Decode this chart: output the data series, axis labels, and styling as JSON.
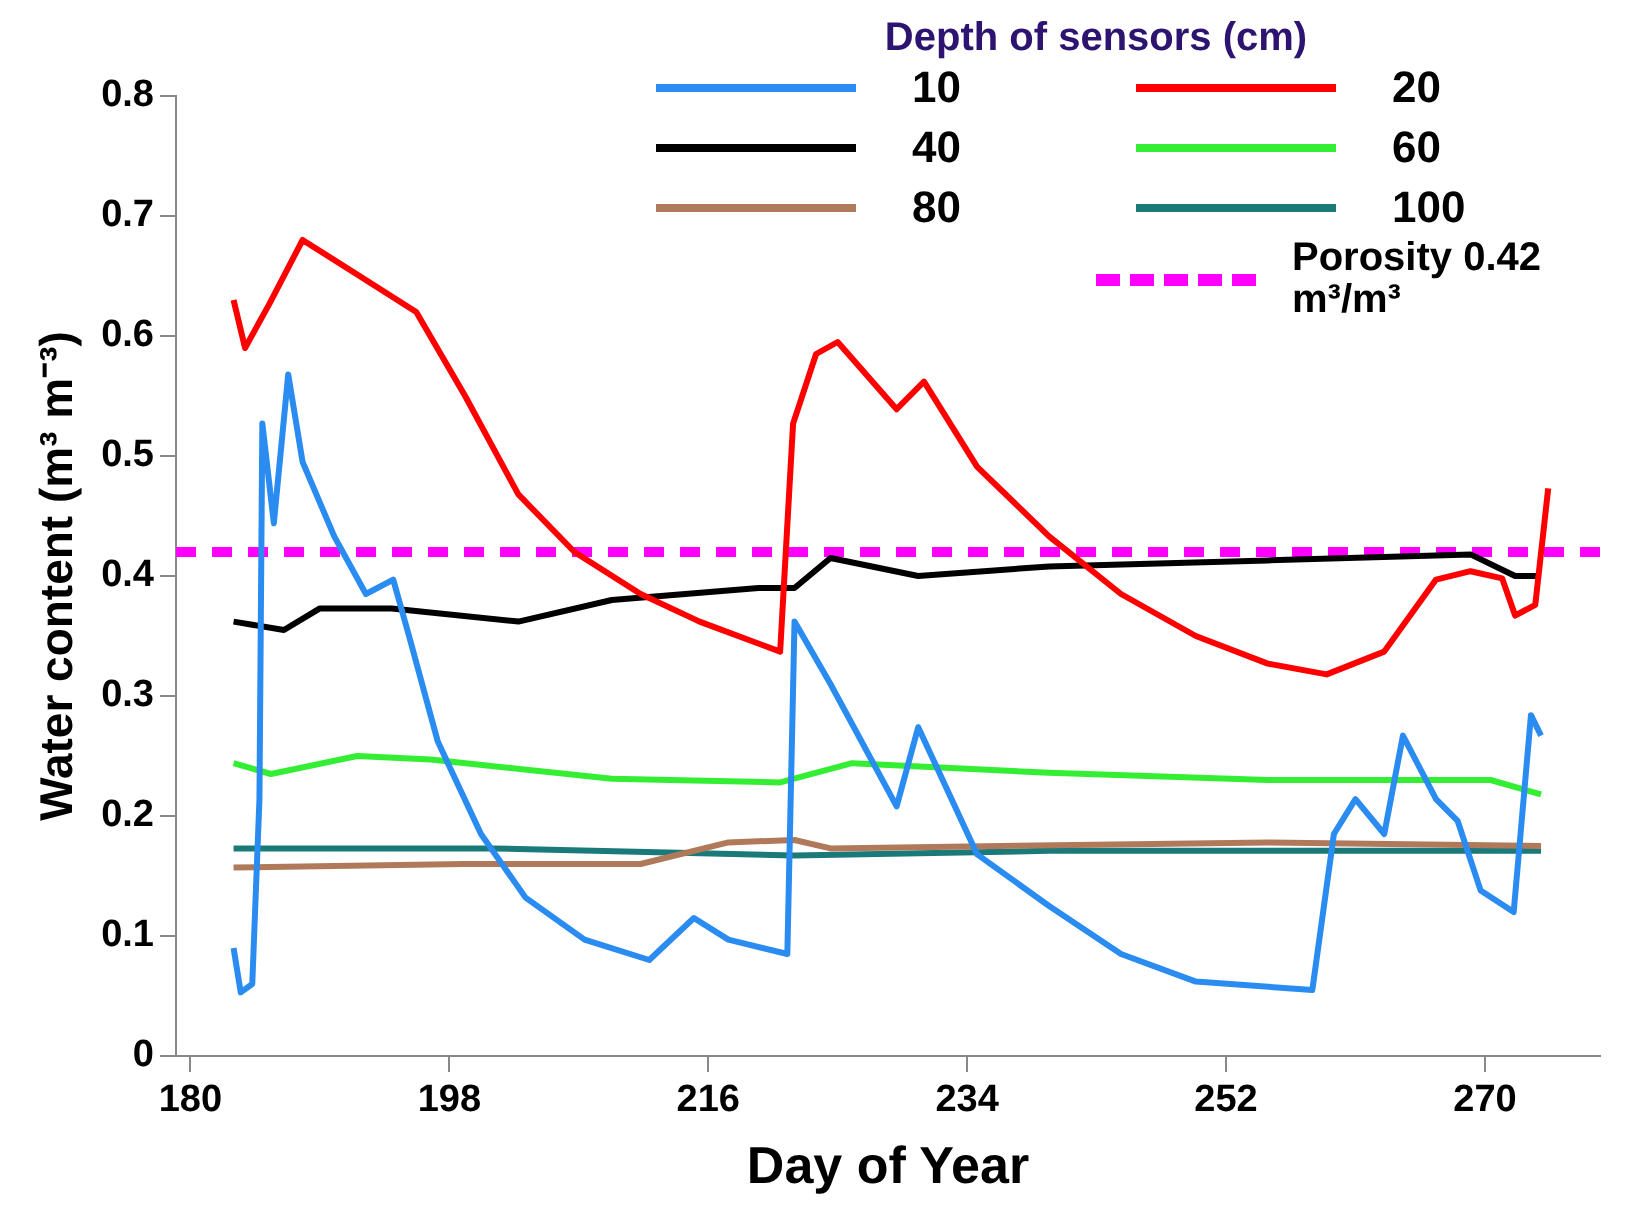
{
  "chart_data": {
    "type": "line",
    "xlabel": "Day of Year",
    "ylabel": "Water content (m³ m⁻³)",
    "legend_title": "Depth of sensors (cm)",
    "xlim": [
      179,
      278
    ],
    "xticks": [
      180,
      198,
      216,
      234,
      252,
      270
    ],
    "ylim": [
      0,
      0.8
    ],
    "yticks": [
      0,
      0.1,
      0.2,
      0.3,
      0.4,
      0.5,
      0.6,
      0.7,
      0.8
    ],
    "grid": false,
    "legend": "top right",
    "marker": "none",
    "line_style": "solid",
    "ref_lines": [
      {
        "axis": "y",
        "value": 0.42,
        "label": "Porosity 0.42 m³/m³",
        "color": "#ff00ff",
        "line_style": "dashed"
      }
    ],
    "series": [
      {
        "name": "10",
        "color": "#2a8cf0",
        "x": [
          183,
          183.5,
          184.3,
          184.8,
          185,
          185.8,
          186.8,
          187.8,
          190,
          192.2,
          194.1,
          195.2,
          197.2,
          200.2,
          203.3,
          207.4,
          211.9,
          215,
          217.4,
          221.5,
          222,
          224.5,
          229.1,
          230.6,
          234.7,
          239.7,
          244.7,
          249.9,
          258,
          259.5,
          261,
          263,
          264.3,
          266.6,
          268.1,
          269.7,
          272,
          273.2,
          273.9
        ],
        "values": [
          0.09,
          0.053,
          0.06,
          0.214,
          0.527,
          0.444,
          0.568,
          0.495,
          0.433,
          0.385,
          0.397,
          0.35,
          0.262,
          0.185,
          0.132,
          0.097,
          0.08,
          0.115,
          0.097,
          0.085,
          0.362,
          0.31,
          0.208,
          0.274,
          0.168,
          0.125,
          0.085,
          0.062,
          0.055,
          0.185,
          0.214,
          0.185,
          0.267,
          0.214,
          0.196,
          0.138,
          0.12,
          0.284,
          0.267
        ]
      },
      {
        "name": "20",
        "color": "#ff0000",
        "x": [
          183,
          183.8,
          185.5,
          187.8,
          191.1,
          195.7,
          199.1,
          202.8,
          206.7,
          211.3,
          215.4,
          221,
          221.9,
          223.5,
          225,
          229.1,
          231,
          234.7,
          239.7,
          244.7,
          249.9,
          254.9,
          259,
          263,
          266.6,
          269,
          271.2,
          272.1,
          273.5,
          274.4
        ],
        "values": [
          0.63,
          0.59,
          0.627,
          0.68,
          0.655,
          0.62,
          0.55,
          0.468,
          0.42,
          0.385,
          0.362,
          0.337,
          0.527,
          0.585,
          0.595,
          0.539,
          0.562,
          0.491,
          0.433,
          0.385,
          0.35,
          0.327,
          0.318,
          0.337,
          0.397,
          0.404,
          0.398,
          0.367,
          0.376,
          0.473
        ]
      },
      {
        "name": "40",
        "color": "#000000",
        "x": [
          183,
          186.5,
          189,
          194,
          202.8,
          209.3,
          219.5,
          222,
          224.5,
          230.6,
          239.7,
          254.9,
          269,
          272.1,
          273.9
        ],
        "values": [
          0.362,
          0.355,
          0.373,
          0.373,
          0.362,
          0.38,
          0.39,
          0.39,
          0.415,
          0.4,
          0.408,
          0.413,
          0.418,
          0.4,
          0.4
        ]
      },
      {
        "name": "60",
        "color": "#33ee33",
        "x": [
          183,
          185.6,
          191.6,
          196.7,
          209.3,
          221,
          226,
          239.7,
          254.9,
          270.4,
          273.9
        ],
        "values": [
          0.244,
          0.235,
          0.25,
          0.247,
          0.231,
          0.228,
          0.244,
          0.236,
          0.23,
          0.23,
          0.218
        ]
      },
      {
        "name": "80",
        "color": "#b07a5a",
        "x": [
          183,
          199,
          211.3,
          217.4,
          222,
          224.5,
          254.9,
          273.9
        ],
        "values": [
          0.157,
          0.16,
          0.16,
          0.178,
          0.18,
          0.173,
          0.178,
          0.175
        ]
      },
      {
        "name": "100",
        "color": "#1a7a7a",
        "x": [
          183,
          201,
          222,
          239.7,
          273.9
        ],
        "values": [
          0.173,
          0.173,
          0.167,
          0.171,
          0.171
        ]
      }
    ]
  }
}
